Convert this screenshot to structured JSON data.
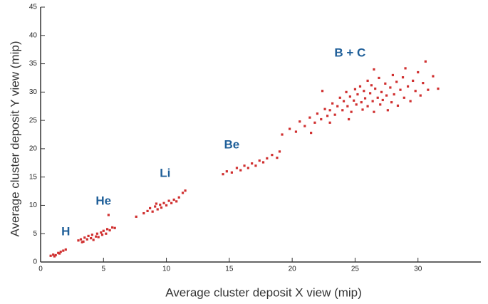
{
  "chart_data": {
    "type": "scatter",
    "x_label": "Average cluster deposit X view (mip)",
    "y_label": "Average cluster deposit Y view (mip)",
    "xlim": [
      0,
      35
    ],
    "ylim": [
      0,
      45
    ],
    "xticks": [
      0,
      5,
      10,
      15,
      20,
      25,
      30
    ],
    "yticks": [
      0,
      5,
      10,
      15,
      20,
      25,
      30,
      35,
      40,
      45
    ],
    "color": "#d03030",
    "annotations": [
      {
        "text": "H",
        "x": 2.0,
        "y": 5.3
      },
      {
        "text": "He",
        "x": 5.0,
        "y": 10.7
      },
      {
        "text": "Li",
        "x": 9.9,
        "y": 15.6
      },
      {
        "text": "Be",
        "x": 15.2,
        "y": 20.6
      },
      {
        "text": "B + C",
        "x": 24.6,
        "y": 36.8
      }
    ],
    "x": [
      0.8,
      1.0,
      1.2,
      1.4,
      1.6,
      1.8,
      2.0,
      1.1,
      1.5,
      3.0,
      3.2,
      3.4,
      3.5,
      3.7,
      3.8,
      4.0,
      4.1,
      4.2,
      4.4,
      4.5,
      4.6,
      4.8,
      4.9,
      5.0,
      5.2,
      5.3,
      5.5,
      5.7,
      5.9,
      5.4,
      3.3,
      7.6,
      8.2,
      8.5,
      8.7,
      8.9,
      9.1,
      9.3,
      9.5,
      9.6,
      9.8,
      10.0,
      10.2,
      10.4,
      10.6,
      10.8,
      11.0,
      11.3,
      11.5,
      9.2,
      14.5,
      14.8,
      15.2,
      15.6,
      15.9,
      16.2,
      16.5,
      16.8,
      17.1,
      17.4,
      17.7,
      18.0,
      18.4,
      18.8,
      19.0,
      19.2,
      19.8,
      20.3,
      20.6,
      21.0,
      21.4,
      21.8,
      22.0,
      22.3,
      22.6,
      22.8,
      23.0,
      23.2,
      23.4,
      23.6,
      23.8,
      24.0,
      24.1,
      24.3,
      24.4,
      24.6,
      24.7,
      24.9,
      25.0,
      25.1,
      25.2,
      25.4,
      25.5,
      25.6,
      25.7,
      25.8,
      26.0,
      26.0,
      26.2,
      26.3,
      26.4,
      26.5,
      26.6,
      26.8,
      26.9,
      27.0,
      27.1,
      27.2,
      27.4,
      27.5,
      27.6,
      27.8,
      27.9,
      28.0,
      28.1,
      28.3,
      28.4,
      28.6,
      28.8,
      28.9,
      29.0,
      29.2,
      29.4,
      29.6,
      29.8,
      30.0,
      30.2,
      30.4,
      30.6,
      30.8,
      31.2,
      31.6,
      21.5,
      23.0,
      24.5,
      22.4,
      26.5
    ],
    "y": [
      1.1,
      1.3,
      1.2,
      1.6,
      1.8,
      2.0,
      2.2,
      1.0,
      1.5,
      3.8,
      4.0,
      3.6,
      4.3,
      4.0,
      4.6,
      4.2,
      4.8,
      3.9,
      4.5,
      5.0,
      4.4,
      5.2,
      4.8,
      5.5,
      5.0,
      5.8,
      5.6,
      6.1,
      6.0,
      8.3,
      3.5,
      8.0,
      8.6,
      9.0,
      9.5,
      8.9,
      9.8,
      9.3,
      10.1,
      9.6,
      10.4,
      10.0,
      10.8,
      10.4,
      11.0,
      10.7,
      11.4,
      12.2,
      12.6,
      10.3,
      15.5,
      16.0,
      15.8,
      16.6,
      16.2,
      17.0,
      16.6,
      17.4,
      17.0,
      17.9,
      17.6,
      18.3,
      18.9,
      18.4,
      19.5,
      22.5,
      23.5,
      23.0,
      24.8,
      24.0,
      25.5,
      24.6,
      26.2,
      25.2,
      27.0,
      25.8,
      26.8,
      28.0,
      26.0,
      27.5,
      29.0,
      26.8,
      28.4,
      30.0,
      27.5,
      29.2,
      26.5,
      28.5,
      30.5,
      27.8,
      29.6,
      31.0,
      28.2,
      26.9,
      30.2,
      28.9,
      32.0,
      27.5,
      29.8,
      31.2,
      28.4,
      26.5,
      30.6,
      29.0,
      32.5,
      27.8,
      30.0,
      28.6,
      31.5,
      29.4,
      26.8,
      30.8,
      28.2,
      33.0,
      29.6,
      31.8,
      27.6,
      30.4,
      32.6,
      29.0,
      34.2,
      31.0,
      28.4,
      32.0,
      30.2,
      33.5,
      29.4,
      31.6,
      35.4,
      30.4,
      32.8,
      30.6,
      22.8,
      24.6,
      25.2,
      30.2,
      34.0
    ]
  }
}
